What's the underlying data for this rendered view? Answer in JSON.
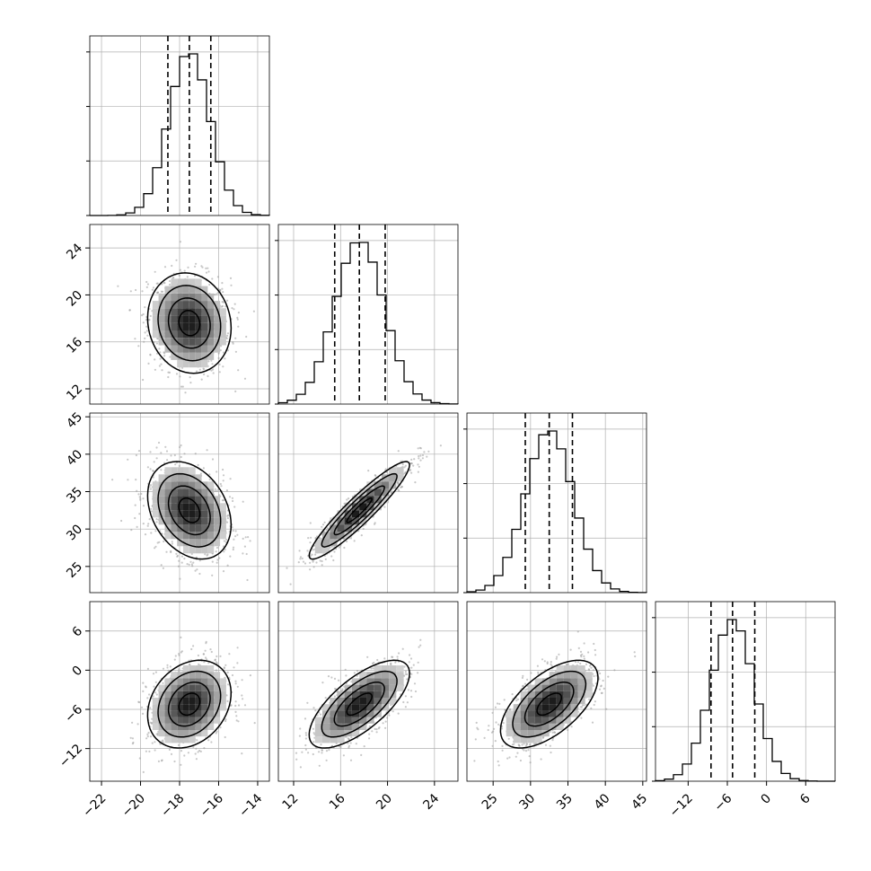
{
  "chart_data": {
    "type": "corner",
    "description_of_marks": "Lower-triangle 2D density (scatter + shaded bins + contours), diagonal 1D step histograms with dashed quantile lines",
    "grid": true,
    "colors": {
      "line": "#000000",
      "grid": "#b0b0b0",
      "scatter": "#9a9a9a",
      "frame": "#000000"
    },
    "params": [
      {
        "id": "p0",
        "range": [
          -22.6,
          -13.4
        ],
        "ticks": [
          -22,
          -20,
          -18,
          -16,
          -14
        ],
        "mean": -17.5,
        "sigma": 1.05,
        "quantiles": [
          -18.6,
          -17.5,
          -16.4
        ]
      },
      {
        "id": "p1",
        "range": [
          10.7,
          26.0
        ],
        "ticks": [
          12,
          16,
          20,
          24
        ],
        "mean": 17.6,
        "sigma": 2.1,
        "quantiles": [
          15.5,
          17.6,
          19.8
        ]
      },
      {
        "id": "p2",
        "range": [
          21.5,
          45.5
        ],
        "ticks": [
          25,
          30,
          35,
          40,
          45
        ],
        "mean": 32.5,
        "sigma": 3.2,
        "quantiles": [
          29.3,
          32.5,
          35.6
        ]
      },
      {
        "id": "p3",
        "range": [
          -17.0,
          10.5
        ],
        "ticks": [
          -12,
          -6,
          0,
          6
        ],
        "mean": -5.2,
        "sigma": 3.3,
        "quantiles": [
          -8.5,
          -5.2,
          -1.8
        ]
      }
    ],
    "tick_labels": {
      "x": [
        [
          "−22",
          "−20",
          "−18",
          "−16",
          "−14"
        ],
        [
          "12",
          "16",
          "20",
          "24"
        ],
        [
          "25",
          "30",
          "35",
          "40",
          "45"
        ],
        [
          "−12",
          "−6",
          "0",
          "6"
        ]
      ],
      "y": [
        [],
        [
          "12",
          "16",
          "20",
          "24"
        ],
        [
          "25",
          "30",
          "35",
          "40",
          "45"
        ],
        [
          "−12",
          "−6",
          "0",
          "6"
        ]
      ]
    },
    "correlations": {
      "1-0": -0.1,
      "2-0": -0.3,
      "2-1": 0.93,
      "3-0": 0.25,
      "3-1": 0.7,
      "3-2": 0.6
    },
    "histogram_bins": 20,
    "scatter_points_per_panel": 900,
    "contour_levels_sigma": [
      0.5,
      1.0,
      1.5,
      2.0
    ]
  }
}
